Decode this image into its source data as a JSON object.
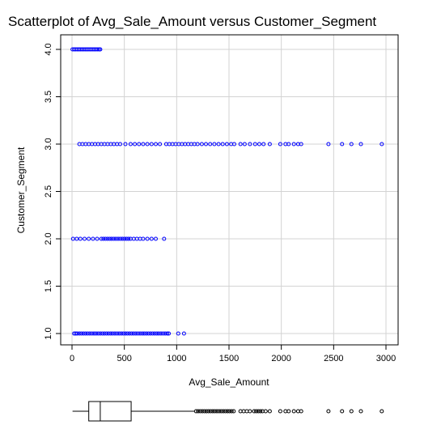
{
  "chart_data": {
    "type": "scatter",
    "title": "Scatterplot of Avg_Sale_Amount versus Customer_Segment",
    "xlabel": "Avg_Sale_Amount",
    "ylabel": "Customer_Segment",
    "xlim": [
      0,
      3000
    ],
    "ylim": [
      1,
      4
    ],
    "x_ticks": [
      "0",
      "500",
      "1000",
      "1500",
      "2000",
      "2500",
      "3000"
    ],
    "y_ticks": [
      "1.0",
      "1.5",
      "2.0",
      "2.5",
      "3.0",
      "3.5",
      "4.0"
    ],
    "x_tick_values": [
      0,
      500,
      1000,
      1500,
      2000,
      2500,
      3000
    ],
    "y_tick_values": [
      1,
      1.5,
      2,
      2.5,
      3,
      3.5,
      4
    ],
    "grid": true,
    "colors": {
      "points": "#0000ff",
      "grid": "#d3d3d3",
      "axis": "#000000",
      "boxplot": "#000000"
    },
    "series": [
      {
        "y": 1,
        "x": [
          20,
          35,
          50,
          70,
          90,
          110,
          130,
          150,
          170,
          190,
          210,
          230,
          250,
          270,
          290,
          310,
          330,
          350,
          370,
          390,
          410,
          430,
          450,
          470,
          490,
          510,
          530,
          550,
          570,
          590,
          610,
          630,
          650,
          670,
          690,
          710,
          730,
          750,
          770,
          790,
          810,
          830,
          850,
          870,
          890,
          910,
          925,
          1015,
          1070
        ]
      },
      {
        "y": 2,
        "x": [
          10,
          45,
          80,
          120,
          160,
          200,
          240,
          280,
          300,
          320,
          340,
          360,
          380,
          400,
          420,
          440,
          460,
          480,
          500,
          520,
          540,
          560,
          590,
          620,
          650,
          680,
          720,
          760,
          800,
          880
        ]
      },
      {
        "y": 3,
        "x": [
          70,
          100,
          130,
          160,
          190,
          220,
          250,
          280,
          310,
          340,
          370,
          400,
          430,
          460,
          510,
          560,
          600,
          640,
          680,
          720,
          760,
          800,
          840,
          900,
          930,
          960,
          990,
          1020,
          1050,
          1080,
          1110,
          1140,
          1170,
          1200,
          1240,
          1280,
          1320,
          1360,
          1400,
          1440,
          1480,
          1520,
          1550,
          1610,
          1650,
          1700,
          1750,
          1790,
          1830,
          1890,
          1990,
          2040,
          2070,
          2120,
          2160,
          2190,
          2450,
          2580,
          2670,
          2760,
          2960
        ]
      },
      {
        "y": 4,
        "x": [
          5,
          20,
          35,
          50,
          65,
          80,
          95,
          110,
          125,
          140,
          155,
          170,
          185,
          200,
          215,
          230,
          245,
          260,
          270
        ]
      }
    ],
    "boxplot": {
      "q1": 160,
      "median": 270,
      "q3": 565,
      "whisker_low": 5,
      "whisker_high": 1170,
      "outliers": [
        1185,
        1205,
        1225,
        1245,
        1265,
        1285,
        1305,
        1325,
        1345,
        1365,
        1385,
        1405,
        1425,
        1445,
        1465,
        1485,
        1505,
        1525,
        1545,
        1610,
        1640,
        1670,
        1700,
        1740,
        1760,
        1780,
        1800,
        1820,
        1850,
        1890,
        1990,
        2040,
        2070,
        2120,
        2160,
        2190,
        2450,
        2580,
        2670,
        2760,
        2960
      ]
    }
  }
}
